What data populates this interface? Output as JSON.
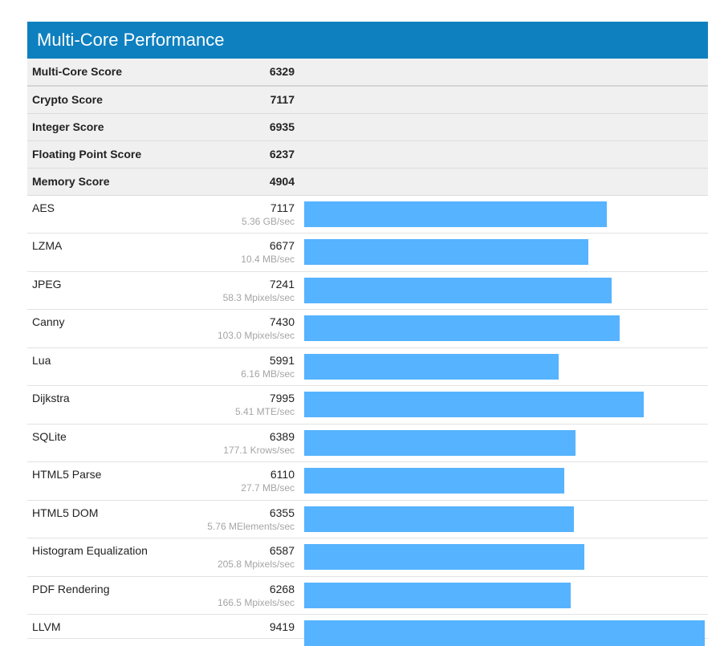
{
  "header": {
    "title": "Multi-Core Performance"
  },
  "summary": [
    {
      "label": "Multi-Core Score",
      "score": "6329"
    },
    {
      "label": "Crypto Score",
      "score": "7117"
    },
    {
      "label": "Integer Score",
      "score": "6935"
    },
    {
      "label": "Floating Point Score",
      "score": "6237"
    },
    {
      "label": "Memory Score",
      "score": "4904"
    }
  ],
  "benchmarks": [
    {
      "label": "AES",
      "score": "7117",
      "rate": "5.36 GB/sec",
      "value": 7117
    },
    {
      "label": "LZMA",
      "score": "6677",
      "rate": "10.4 MB/sec",
      "value": 6677
    },
    {
      "label": "JPEG",
      "score": "7241",
      "rate": "58.3 Mpixels/sec",
      "value": 7241
    },
    {
      "label": "Canny",
      "score": "7430",
      "rate": "103.0 Mpixels/sec",
      "value": 7430
    },
    {
      "label": "Lua",
      "score": "5991",
      "rate": "6.16 MB/sec",
      "value": 5991
    },
    {
      "label": "Dijkstra",
      "score": "7995",
      "rate": "5.41 MTE/sec",
      "value": 7995
    },
    {
      "label": "SQLite",
      "score": "6389",
      "rate": "177.1 Krows/sec",
      "value": 6389
    },
    {
      "label": "HTML5 Parse",
      "score": "6110",
      "rate": "27.7 MB/sec",
      "value": 6110
    },
    {
      "label": "HTML5 DOM",
      "score": "6355",
      "rate": "5.76 MElements/sec",
      "value": 6355
    },
    {
      "label": "Histogram Equalization",
      "score": "6587",
      "rate": "205.8 Mpixels/sec",
      "value": 6587
    },
    {
      "label": "PDF Rendering",
      "score": "6268",
      "rate": "166.5 Mpixels/sec",
      "value": 6268
    },
    {
      "label": "LLVM",
      "score": "9419",
      "rate": "",
      "value": 9419
    }
  ],
  "colors": {
    "header": "#0e80c0",
    "bar": "#56b3ff"
  }
}
